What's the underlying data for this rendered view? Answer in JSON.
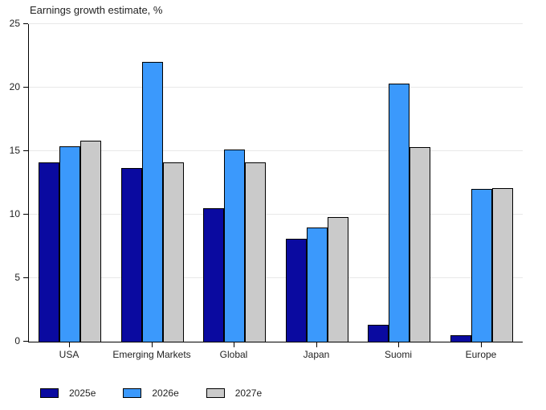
{
  "chart_data": {
    "type": "bar",
    "title": "Earnings growth estimate, %",
    "categories": [
      "USA",
      "Emerging Markets",
      "Global",
      "Japan",
      "Suomi",
      "Europe"
    ],
    "series": [
      {
        "name": "2025e",
        "color": "#0A0AA0",
        "values": [
          14.1,
          13.7,
          10.5,
          8.1,
          1.3,
          0.5
        ]
      },
      {
        "name": "2026e",
        "color": "#3B99FC",
        "values": [
          15.4,
          22.0,
          15.1,
          9.0,
          20.3,
          12.0
        ]
      },
      {
        "name": "2027e",
        "color": "#CACACA",
        "values": [
          15.8,
          14.1,
          14.1,
          9.8,
          15.3,
          12.1
        ]
      }
    ],
    "ylim": [
      0,
      25
    ],
    "ytick_step": 5,
    "yticks": [
      0,
      5,
      10,
      15,
      20,
      25
    ],
    "grid": true,
    "gridline_color": "#E8E8E8",
    "axis_color": "#000000",
    "bar_border_color": "#000000",
    "text_color": "#1F1F1F",
    "legend_position": "bottom-left"
  }
}
